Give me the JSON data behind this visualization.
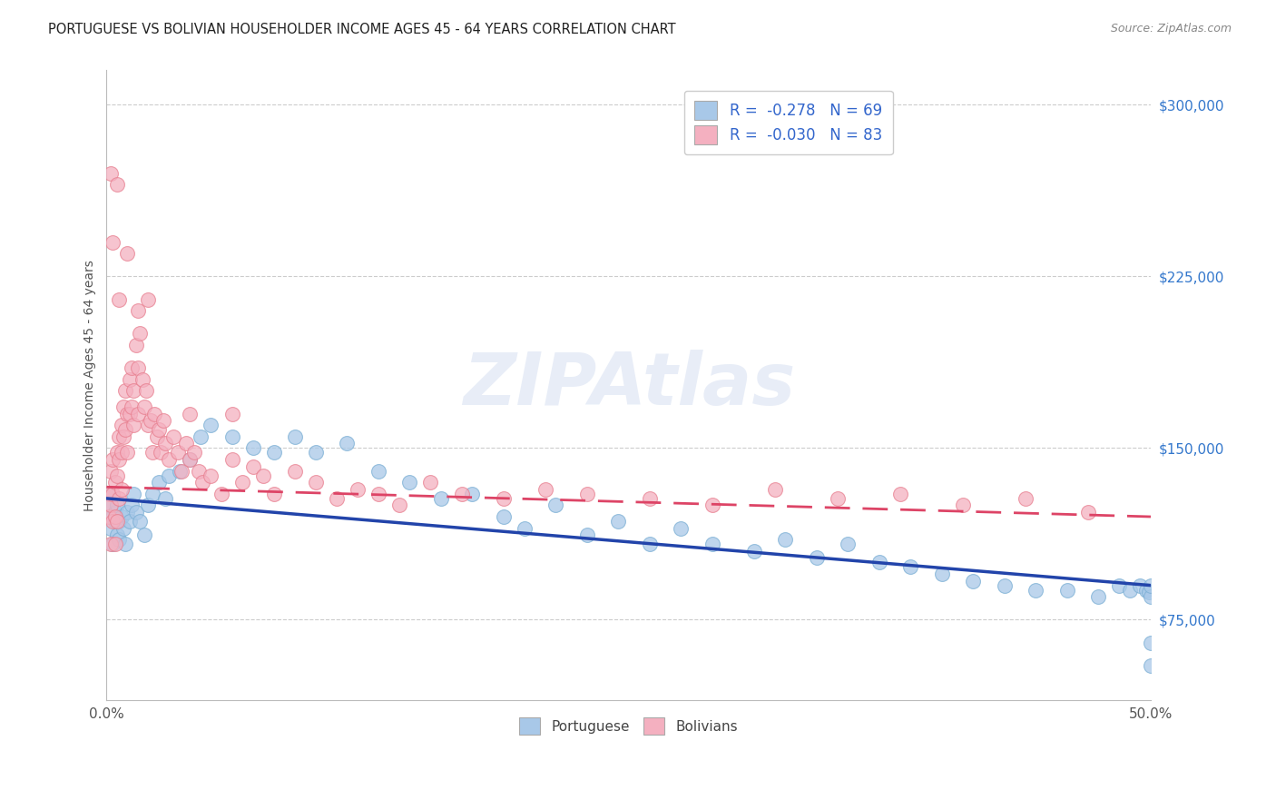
{
  "title": "PORTUGUESE VS BOLIVIAN HOUSEHOLDER INCOME AGES 45 - 64 YEARS CORRELATION CHART",
  "source": "Source: ZipAtlas.com",
  "ylabel": "Householder Income Ages 45 - 64 years",
  "xlim": [
    0.0,
    0.5
  ],
  "ylim": [
    40000,
    315000
  ],
  "yticks_right": [
    75000,
    150000,
    225000,
    300000
  ],
  "ytick_labels_right": [
    "$75,000",
    "$150,000",
    "$225,000",
    "$300,000"
  ],
  "watermark": "ZIPAtlas",
  "legend_entry_port": "R =  -0.278   N = 69",
  "legend_entry_boli": "R =  -0.030   N = 83",
  "legend_labels_bottom": [
    "Portuguese",
    "Bolivians"
  ],
  "portuguese_color": "#a8c8e8",
  "bolivian_color": "#f4b0c0",
  "portuguese_edge_color": "#7bafd4",
  "bolivian_edge_color": "#e88090",
  "trend_portuguese_color": "#2244aa",
  "trend_bolivian_color": "#dd4466",
  "background_color": "#ffffff",
  "grid_color": "#cccccc",
  "title_color": "#222222",
  "axis_label_color": "#555555",
  "right_tick_color": "#3377cc",
  "legend_text_color": "#3366cc",
  "portuguese_x": [
    0.001,
    0.002,
    0.002,
    0.003,
    0.003,
    0.004,
    0.004,
    0.005,
    0.005,
    0.006,
    0.006,
    0.007,
    0.008,
    0.009,
    0.01,
    0.011,
    0.012,
    0.013,
    0.014,
    0.016,
    0.018,
    0.02,
    0.022,
    0.025,
    0.028,
    0.03,
    0.035,
    0.04,
    0.045,
    0.05,
    0.06,
    0.07,
    0.08,
    0.09,
    0.1,
    0.115,
    0.13,
    0.145,
    0.16,
    0.175,
    0.19,
    0.2,
    0.215,
    0.23,
    0.245,
    0.26,
    0.275,
    0.29,
    0.31,
    0.325,
    0.34,
    0.355,
    0.37,
    0.385,
    0.4,
    0.415,
    0.43,
    0.445,
    0.46,
    0.475,
    0.485,
    0.49,
    0.495,
    0.498,
    0.499,
    0.5,
    0.5,
    0.5,
    0.5
  ],
  "portuguese_y": [
    130000,
    115000,
    125000,
    120000,
    108000,
    122000,
    118000,
    125000,
    112000,
    118000,
    110000,
    120000,
    115000,
    108000,
    122000,
    118000,
    125000,
    130000,
    122000,
    118000,
    112000,
    125000,
    130000,
    135000,
    128000,
    138000,
    140000,
    145000,
    155000,
    160000,
    155000,
    150000,
    148000,
    155000,
    148000,
    152000,
    140000,
    135000,
    128000,
    130000,
    120000,
    115000,
    125000,
    112000,
    118000,
    108000,
    115000,
    108000,
    105000,
    110000,
    102000,
    108000,
    100000,
    98000,
    95000,
    92000,
    90000,
    88000,
    88000,
    85000,
    90000,
    88000,
    90000,
    88000,
    87000,
    85000,
    90000,
    65000,
    55000
  ],
  "bolivian_x": [
    0.001,
    0.001,
    0.002,
    0.002,
    0.002,
    0.003,
    0.003,
    0.003,
    0.004,
    0.004,
    0.004,
    0.005,
    0.005,
    0.005,
    0.006,
    0.006,
    0.006,
    0.007,
    0.007,
    0.007,
    0.008,
    0.008,
    0.009,
    0.009,
    0.01,
    0.01,
    0.011,
    0.011,
    0.012,
    0.012,
    0.013,
    0.013,
    0.014,
    0.015,
    0.015,
    0.016,
    0.017,
    0.018,
    0.019,
    0.02,
    0.021,
    0.022,
    0.023,
    0.024,
    0.025,
    0.026,
    0.027,
    0.028,
    0.03,
    0.032,
    0.034,
    0.036,
    0.038,
    0.04,
    0.042,
    0.044,
    0.046,
    0.05,
    0.055,
    0.06,
    0.065,
    0.07,
    0.075,
    0.08,
    0.09,
    0.1,
    0.11,
    0.12,
    0.13,
    0.14,
    0.155,
    0.17,
    0.19,
    0.21,
    0.23,
    0.26,
    0.29,
    0.32,
    0.35,
    0.38,
    0.41,
    0.44,
    0.47
  ],
  "bolivian_y": [
    130000,
    120000,
    140000,
    125000,
    108000,
    145000,
    130000,
    118000,
    135000,
    120000,
    108000,
    148000,
    138000,
    118000,
    155000,
    145000,
    128000,
    160000,
    148000,
    132000,
    168000,
    155000,
    175000,
    158000,
    165000,
    148000,
    180000,
    165000,
    185000,
    168000,
    175000,
    160000,
    195000,
    185000,
    165000,
    200000,
    180000,
    168000,
    175000,
    160000,
    162000,
    148000,
    165000,
    155000,
    158000,
    148000,
    162000,
    152000,
    145000,
    155000,
    148000,
    140000,
    152000,
    145000,
    148000,
    140000,
    135000,
    138000,
    130000,
    145000,
    135000,
    142000,
    138000,
    130000,
    140000,
    135000,
    128000,
    132000,
    130000,
    125000,
    135000,
    130000,
    128000,
    132000,
    130000,
    128000,
    125000,
    132000,
    128000,
    130000,
    125000,
    128000,
    122000
  ],
  "bolivian_outlier_x": [
    0.002,
    0.005,
    0.003,
    0.01,
    0.006,
    0.015,
    0.02,
    0.04,
    0.06
  ],
  "bolivian_outlier_y": [
    270000,
    265000,
    240000,
    235000,
    215000,
    210000,
    215000,
    165000,
    165000
  ]
}
